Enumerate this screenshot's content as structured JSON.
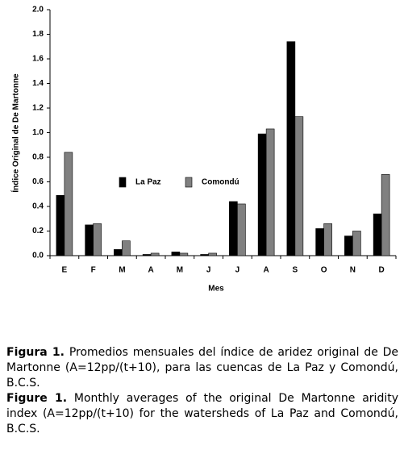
{
  "chart_data": {
    "type": "bar",
    "y_label": "Índice Original de De Martonne",
    "x_label": "Mes",
    "categories": [
      "E",
      "F",
      "M",
      "A",
      "M",
      "J",
      "J",
      "A",
      "S",
      "O",
      "N",
      "D"
    ],
    "series": [
      {
        "name": "La Paz",
        "color": "#000000",
        "values": [
          0.49,
          0.25,
          0.05,
          0.01,
          0.03,
          0.01,
          0.44,
          0.99,
          1.74,
          0.22,
          0.16,
          0.34
        ]
      },
      {
        "name": "Comondú",
        "color": "#808080",
        "values": [
          0.84,
          0.26,
          0.12,
          0.02,
          0.02,
          0.02,
          0.42,
          1.03,
          1.13,
          0.26,
          0.2,
          0.66
        ]
      }
    ],
    "ylim": [
      0,
      2
    ],
    "yticks": [
      {
        "value": 0,
        "label": "0.0"
      },
      0.2,
      0.4,
      0.6,
      0.8,
      {
        "value": 1,
        "label": "1.0"
      },
      1.2,
      1.4,
      1.6,
      1.8,
      {
        "value": 2,
        "label": "2.0"
      }
    ],
    "grid": false
  },
  "caption_es": {
    "label": "Figura 1.",
    "text": "Promedios mensuales del índice de aridez original de De Martonne (A=12pp/(t+10), para las cuencas de La Paz y Comondú, B.C.S."
  },
  "caption_en": {
    "label": "Figure 1.",
    "text": "Monthly averages of the original De Martonne aridity index (A=12pp/(t+10) for the watersheds of La Paz and Comondú, B.C.S."
  }
}
